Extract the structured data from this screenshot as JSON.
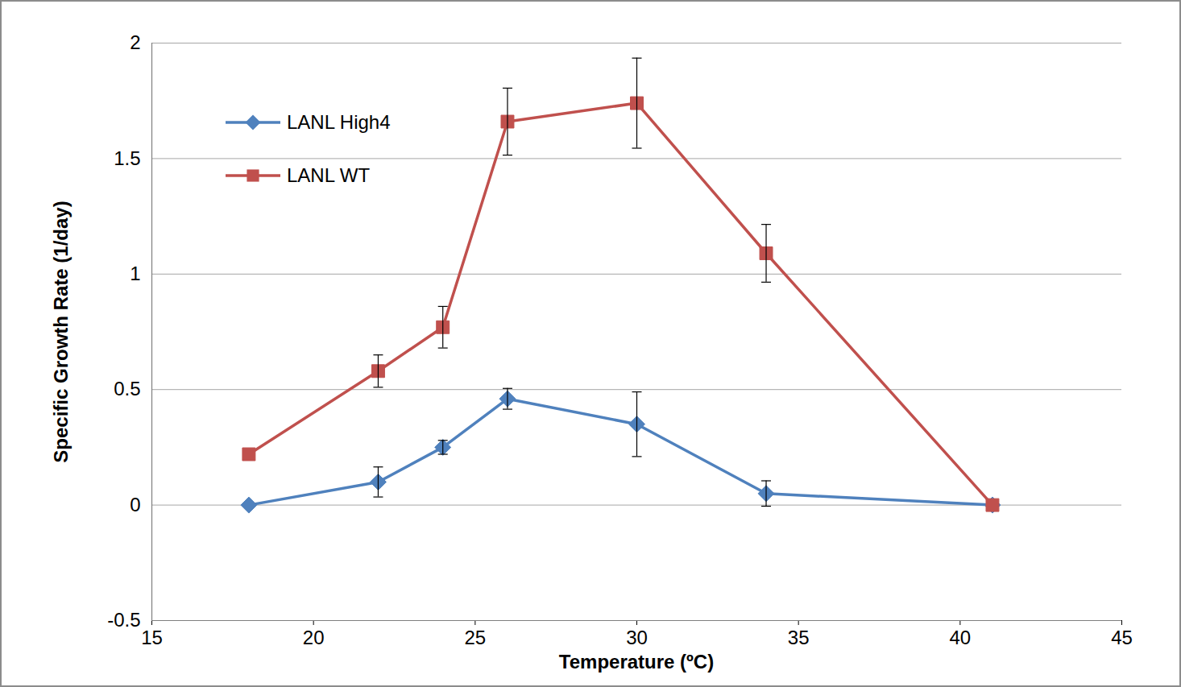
{
  "chart_data": {
    "type": "line",
    "x_label": "Temperature (ºC)",
    "y_label": "Specific Growth Rate (1/day)",
    "x": [
      18,
      22,
      24,
      26,
      30,
      34,
      41
    ],
    "series": [
      {
        "name": "LANL High4",
        "color": "#4f81bd",
        "marker": "diamond",
        "values": [
          0.0,
          0.1,
          0.25,
          0.46,
          0.35,
          0.05,
          0.0
        ],
        "errors": [
          0,
          0.065,
          0.03,
          0.045,
          0.14,
          0.055,
          0
        ]
      },
      {
        "name": "LANL WT",
        "color": "#c0504d",
        "marker": "square",
        "values": [
          0.22,
          0.58,
          0.77,
          1.66,
          1.74,
          1.09,
          0.0
        ],
        "errors": [
          0,
          0.07,
          0.09,
          0.145,
          0.195,
          0.125,
          0
        ]
      }
    ],
    "xlim": [
      15,
      45
    ],
    "xticks": [
      15,
      20,
      25,
      30,
      35,
      40,
      45
    ],
    "ylim": [
      -0.5,
      2
    ],
    "yticks": [
      -0.5,
      0,
      0.5,
      1,
      1.5,
      2
    ],
    "grid": true,
    "legend": "top-left"
  }
}
